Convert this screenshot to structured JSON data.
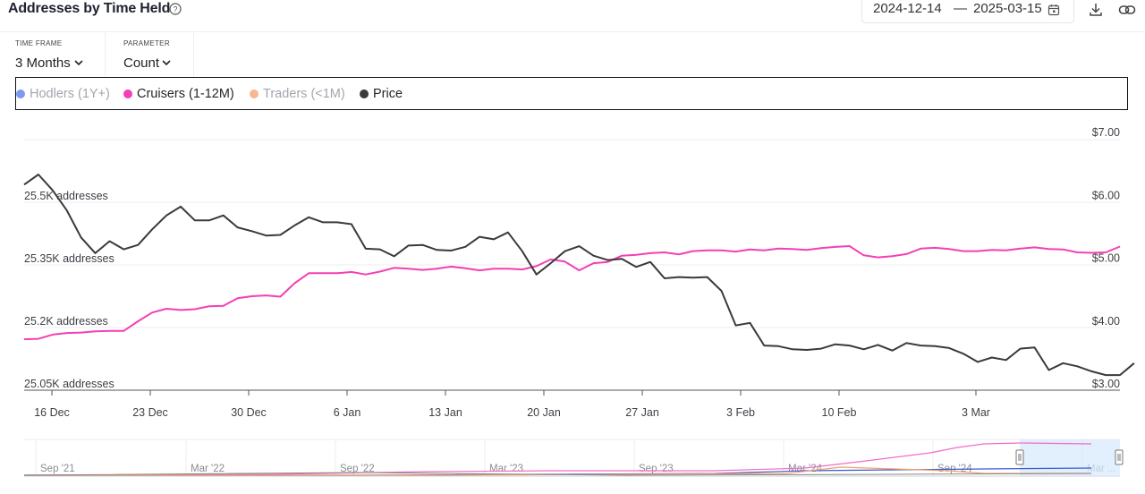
{
  "header": {
    "title": "Addresses by Time Held",
    "date_from": "2024-12-14",
    "date_sep": "—",
    "date_to": "2025-03-15"
  },
  "controls": {
    "timeframe_label": "TIME FRAME",
    "timeframe_value": "3 Months",
    "parameter_label": "PARAMETER",
    "parameter_value": "Count"
  },
  "legend": [
    {
      "label": "Hodlers (1Y+)",
      "color": "#7f98f2",
      "active": false
    },
    {
      "label": "Cruisers (1-12M)",
      "color": "#f43fb5",
      "active": true
    },
    {
      "label": "Traders (<1M)",
      "color": "#f8b88e",
      "active": false
    },
    {
      "label": "Price",
      "color": "#3a3a3d",
      "active": true
    }
  ],
  "chart_data": {
    "type": "line",
    "x_tick_labels": [
      "16 Dec",
      "23 Dec",
      "30 Dec",
      "6 Jan",
      "13 Jan",
      "20 Jan",
      "27 Jan",
      "3 Feb",
      "10 Feb",
      "3 Mar"
    ],
    "left_axis": {
      "ticks": [
        "25.05K addresses",
        "25.2K addresses",
        "25.35K addresses",
        "25.5K addresses"
      ],
      "range": [
        25050,
        25650
      ]
    },
    "right_axis": {
      "ticks": [
        "$3.00",
        "$4.00",
        "$5.00",
        "$6.00",
        "$7.00"
      ],
      "range": [
        3.0,
        7.0
      ]
    },
    "grid": true,
    "series": [
      {
        "name": "Cruisers (1-12M)",
        "axis": "left",
        "color": "#f43fb5",
        "values": [
          25172,
          25173,
          25183,
          25187,
          25188,
          25191,
          25192,
          25192,
          25215,
          25236,
          25245,
          25242,
          25244,
          25251,
          25252,
          25270,
          25275,
          25277,
          25274,
          25306,
          25330,
          25330,
          25330,
          25333,
          25327,
          25334,
          25343,
          25341,
          25338,
          25341,
          25346,
          25342,
          25337,
          25341,
          25341,
          25339,
          25347,
          25363,
          25358,
          25337,
          25354,
          25357,
          25372,
          25374,
          25378,
          25380,
          25375,
          25383,
          25385,
          25385,
          25382,
          25387,
          25385,
          25389,
          25388,
          25386,
          25390,
          25393,
          25395,
          25373,
          25368,
          25371,
          25376,
          25389,
          25391,
          25388,
          25383,
          25383,
          25386,
          25385,
          25389,
          25392,
          25388,
          25387,
          25380,
          25379,
          25380,
          25394
        ]
      },
      {
        "name": "Price",
        "axis": "right",
        "color": "#3a3a3d",
        "values": [
          6.27,
          6.43,
          6.18,
          5.86,
          5.43,
          5.18,
          5.37,
          5.24,
          5.31,
          5.56,
          5.78,
          5.92,
          5.7,
          5.7,
          5.78,
          5.59,
          5.53,
          5.46,
          5.47,
          5.62,
          5.75,
          5.67,
          5.67,
          5.64,
          5.25,
          5.24,
          5.13,
          5.3,
          5.31,
          5.23,
          5.22,
          5.28,
          5.44,
          5.4,
          5.51,
          5.21,
          4.84,
          5.02,
          5.21,
          5.29,
          5.14,
          5.07,
          5.09,
          4.96,
          5.04,
          4.78,
          4.8,
          4.79,
          4.8,
          4.58,
          4.03,
          4.07,
          3.71,
          3.7,
          3.65,
          3.64,
          3.66,
          3.73,
          3.71,
          3.65,
          3.72,
          3.63,
          3.75,
          3.71,
          3.7,
          3.67,
          3.58,
          3.45,
          3.52,
          3.48,
          3.66,
          3.68,
          3.32,
          3.43,
          3.38,
          3.3,
          3.24,
          3.24,
          3.43
        ]
      }
    ]
  },
  "navigator": {
    "labels": [
      "Sep '21",
      "Mar '22",
      "Sep '22",
      "Mar '23",
      "Sep '23",
      "Mar '24",
      "Sep '24",
      "Mar ..."
    ]
  }
}
